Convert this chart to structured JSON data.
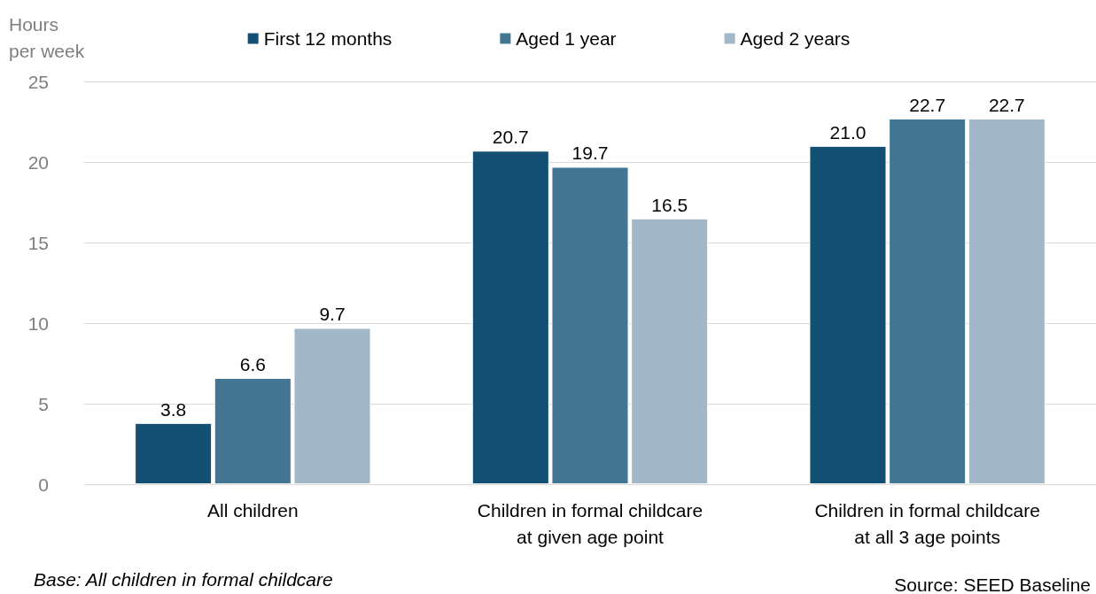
{
  "chart_data": {
    "type": "bar",
    "ylabel": "Hours\nper week",
    "categories": [
      "All children",
      "Children in formal childcare\nat given age point",
      "Children in formal childcare\nat all 3 age points"
    ],
    "series": [
      {
        "name": "First 12 months",
        "color": "#134f73",
        "values": [
          3.8,
          20.7,
          21.0
        ]
      },
      {
        "name": "Aged 1 year",
        "color": "#427693",
        "values": [
          6.6,
          19.7,
          22.7
        ]
      },
      {
        "name": "Aged 2 years",
        "color": "#a2b8c8",
        "values": [
          9.7,
          16.5,
          22.7
        ]
      }
    ],
    "value_labels": [
      [
        "3.8",
        "20.7",
        "21.0"
      ],
      [
        "6.6",
        "19.7",
        "22.7"
      ],
      [
        "9.7",
        "16.5",
        "22.7"
      ]
    ],
    "ylim": [
      0,
      25
    ],
    "yticks": [
      0,
      5,
      10,
      15,
      20,
      25
    ],
    "grid": "y",
    "legend": "top",
    "annotations": [
      "Base: All children in formal childcare",
      "Source: SEED Baseline"
    ]
  }
}
